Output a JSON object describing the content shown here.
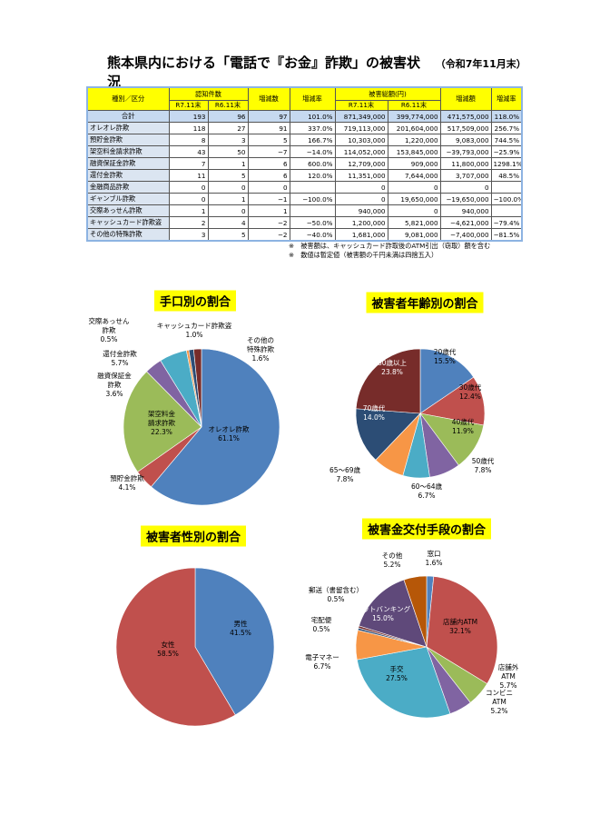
{
  "document": {
    "title": "熊本県内における「電話で『お金』詐欺」の被害状況",
    "title_note": "（令和7年11月末）",
    "table": {
      "header_row1": [
        "種別／区分",
        "認知件数",
        "増減数",
        "増減率",
        "被害総額(円)",
        "増減額",
        "増減率"
      ],
      "header_row2": [
        "R7.11末",
        "R6.11末",
        "R7.11末",
        "R6.11末"
      ],
      "rows": [
        [
          "合計",
          "193",
          "96",
          "97",
          "101.0%",
          "871,349,000",
          "399,774,000",
          "471,575,000",
          "118.0%"
        ],
        [
          "オレオレ詐欺",
          "118",
          "27",
          "91",
          "337.0%",
          "719,113,000",
          "201,604,000",
          "517,509,000",
          "256.7%"
        ],
        [
          "預貯金詐欺",
          "8",
          "3",
          "5",
          "166.7%",
          "10,303,000",
          "1,220,000",
          "9,083,000",
          "744.5%"
        ],
        [
          "架空料金請求詐欺",
          "43",
          "50",
          "−7",
          "−14.0%",
          "114,052,000",
          "153,845,000",
          "−39,793,000",
          "−25.9%"
        ],
        [
          "融資保証金詐欺",
          "7",
          "1",
          "6",
          "600.0%",
          "12,709,000",
          "909,000",
          "11,800,000",
          "1298.1%"
        ],
        [
          "還付金詐欺",
          "11",
          "5",
          "6",
          "120.0%",
          "11,351,000",
          "7,644,000",
          "3,707,000",
          "48.5%"
        ],
        [
          "金融商品詐欺",
          "0",
          "0",
          "0",
          null,
          "0",
          "0",
          "0",
          null
        ],
        [
          "ギャンブル詐欺",
          "0",
          "1",
          "−1",
          "−100.0%",
          "0",
          "19,650,000",
          "−19,650,000",
          "−100.0%"
        ],
        [
          "交際あっせん詐欺",
          "1",
          "0",
          "1",
          null,
          "940,000",
          "0",
          "940,000",
          null
        ],
        [
          "キャッシュカード詐欺盗",
          "2",
          "4",
          "−2",
          "−50.0%",
          "1,200,000",
          "5,821,000",
          "−4,621,000",
          "−79.4%"
        ],
        [
          "その他の特殊詐欺",
          "3",
          "5",
          "−2",
          "−40.0%",
          "1,681,000",
          "9,081,000",
          "−7,400,000",
          "−81.5%"
        ]
      ]
    },
    "notes": [
      "※　被害額は、キャッシュカード詐取後のATM引出（窃取）額を含む",
      "※　数値は暫定値（被害額の千円未満は四捨五入）"
    ]
  },
  "chart_data": [
    {
      "type": "pie",
      "title": "手口別の割合",
      "categories": [
        "オレオレ詐欺",
        "預貯金詐欺",
        "架空料金\n請求詐欺",
        "融資保証金\n詐欺",
        "還付金詐欺",
        "交際あっせん\n詐欺",
        "キャッシュカード詐欺盗",
        "その他の\n特殊詐欺"
      ],
      "values": [
        61.1,
        4.1,
        22.3,
        3.6,
        5.7,
        0.5,
        1.0,
        1.6
      ],
      "value_labels": [
        "61.1%",
        "4.1%",
        "22.3%",
        "3.6%",
        "5.7%",
        "0.5%",
        "1.0%",
        "1.6%"
      ],
      "colors": [
        "#4f81bd",
        "#c0504d",
        "#9bbb59",
        "#8064a2",
        "#4bacc6",
        "#f79646",
        "#2c4d75",
        "#772c2a"
      ]
    },
    {
      "type": "pie",
      "title": "被害者年齢別の割合",
      "categories": [
        "20歳代",
        "30歳代",
        "40歳代",
        "50歳代",
        "60～64歳",
        "65～69歳",
        "70歳代",
        "80歳以上"
      ],
      "values": [
        15.5,
        12.4,
        11.9,
        7.8,
        6.7,
        7.8,
        14.0,
        23.8
      ],
      "value_labels": [
        "15.5%",
        "12.4%",
        "11.9%",
        "7.8%",
        "6.7%",
        "7.8%",
        "14.0%",
        "23.8%"
      ],
      "colors": [
        "#4f81bd",
        "#c0504d",
        "#9bbb59",
        "#8064a2",
        "#4bacc6",
        "#f79646",
        "#2c4d75",
        "#772c2a"
      ]
    },
    {
      "type": "pie",
      "title": "被害者性別の割合",
      "categories": [
        "男性",
        "女性"
      ],
      "values": [
        41.5,
        58.5
      ],
      "value_labels": [
        "41.5%",
        "58.5%"
      ],
      "colors": [
        "#4f81bd",
        "#c0504d"
      ]
    },
    {
      "type": "pie",
      "title": "被害金交付手段の割合",
      "categories": [
        "窓口",
        "店舗内ATM",
        "店舗外\nATM",
        "コンビニ\nATM",
        "手交",
        "電子マネー",
        "宅配便",
        "郵送（書留含む）",
        "ネットバンキング",
        "その他"
      ],
      "values": [
        1.6,
        32.1,
        5.7,
        5.2,
        27.5,
        6.7,
        0.5,
        0.5,
        15.0,
        5.2
      ],
      "value_labels": [
        "1.6%",
        "32.1%",
        "5.7%",
        "5.2%",
        "27.5%",
        "6.7%",
        "0.5%",
        "0.5%",
        "15.0%",
        "5.2%"
      ],
      "colors": [
        "#4f81bd",
        "#c0504d",
        "#9bbb59",
        "#8064a2",
        "#4bacc6",
        "#f79646",
        "#2c4d75",
        "#772c2a",
        "#5f497a",
        "#b65708"
      ]
    }
  ]
}
